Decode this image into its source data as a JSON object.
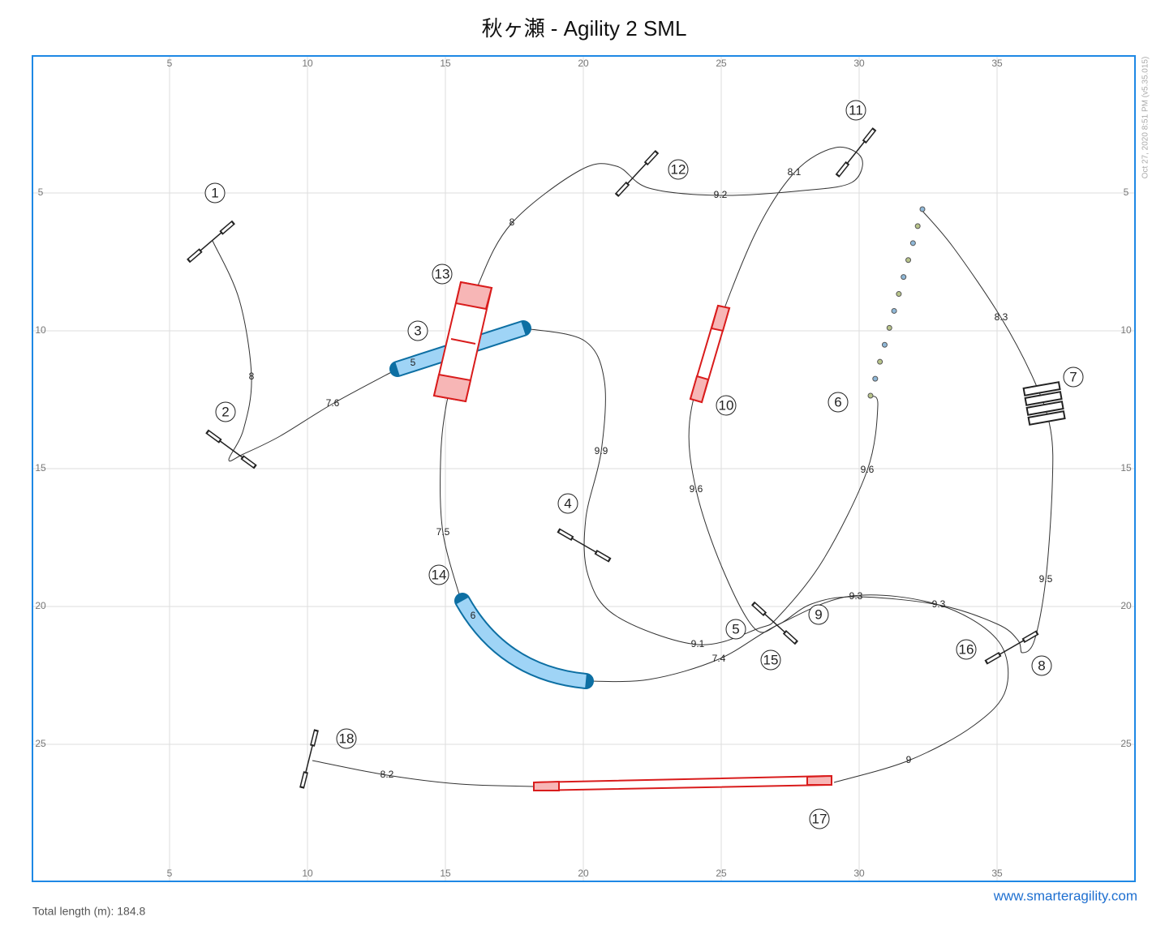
{
  "header": {
    "title": "秋ヶ瀬 - Agility 2 SML"
  },
  "course": {
    "x_ticks": [
      5,
      10,
      15,
      20,
      25,
      30,
      35
    ],
    "y_ticks": [
      5,
      10,
      15,
      20,
      25
    ],
    "obstacles": [
      "1",
      "2",
      "3",
      "4",
      "5",
      "6",
      "7",
      "8",
      "9",
      "10",
      "11",
      "12",
      "13",
      "14",
      "15",
      "16",
      "17",
      "18"
    ],
    "distances": [
      8,
      7.6,
      5,
      9.9,
      9.1,
      7.4,
      9.6,
      8.3,
      9.5,
      9.3,
      9.3,
      9,
      8.2,
      7.5,
      6,
      8,
      9.2,
      8.1,
      9.6
    ]
  },
  "footer": {
    "total_length": "Total length (m): 184.8",
    "website": "www.smarteragility.com",
    "timestamp": "Oct 27, 2020 8:51 PM (v5.35.015)"
  }
}
